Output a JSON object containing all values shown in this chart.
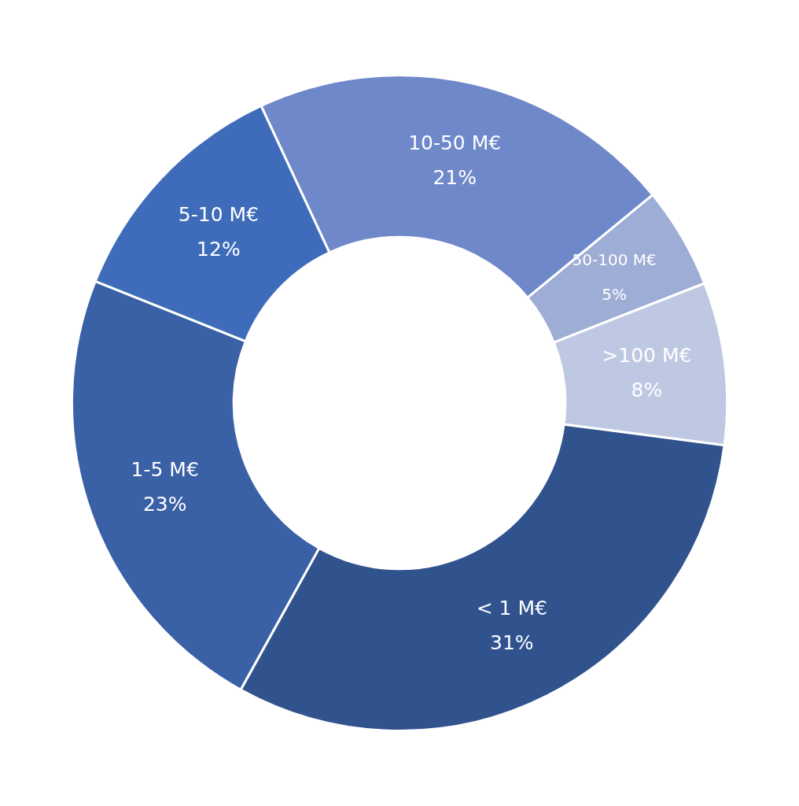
{
  "chart_data": {
    "type": "donut",
    "categories": [
      "10-50 M€",
      "50-100 M€",
      ">100 M€",
      "< 1 M€",
      "1-5 M€",
      "5-10 M€"
    ],
    "values": [
      21,
      5,
      8,
      31,
      23,
      12
    ],
    "colors": [
      "#6e88ca",
      "#9eadd6",
      "#bfc8e2",
      "#30538e",
      "#3a60a6",
      "#3f6cba"
    ],
    "value_labels": [
      "21%",
      "5%",
      "8%",
      "31%",
      "23%",
      "12%"
    ]
  }
}
